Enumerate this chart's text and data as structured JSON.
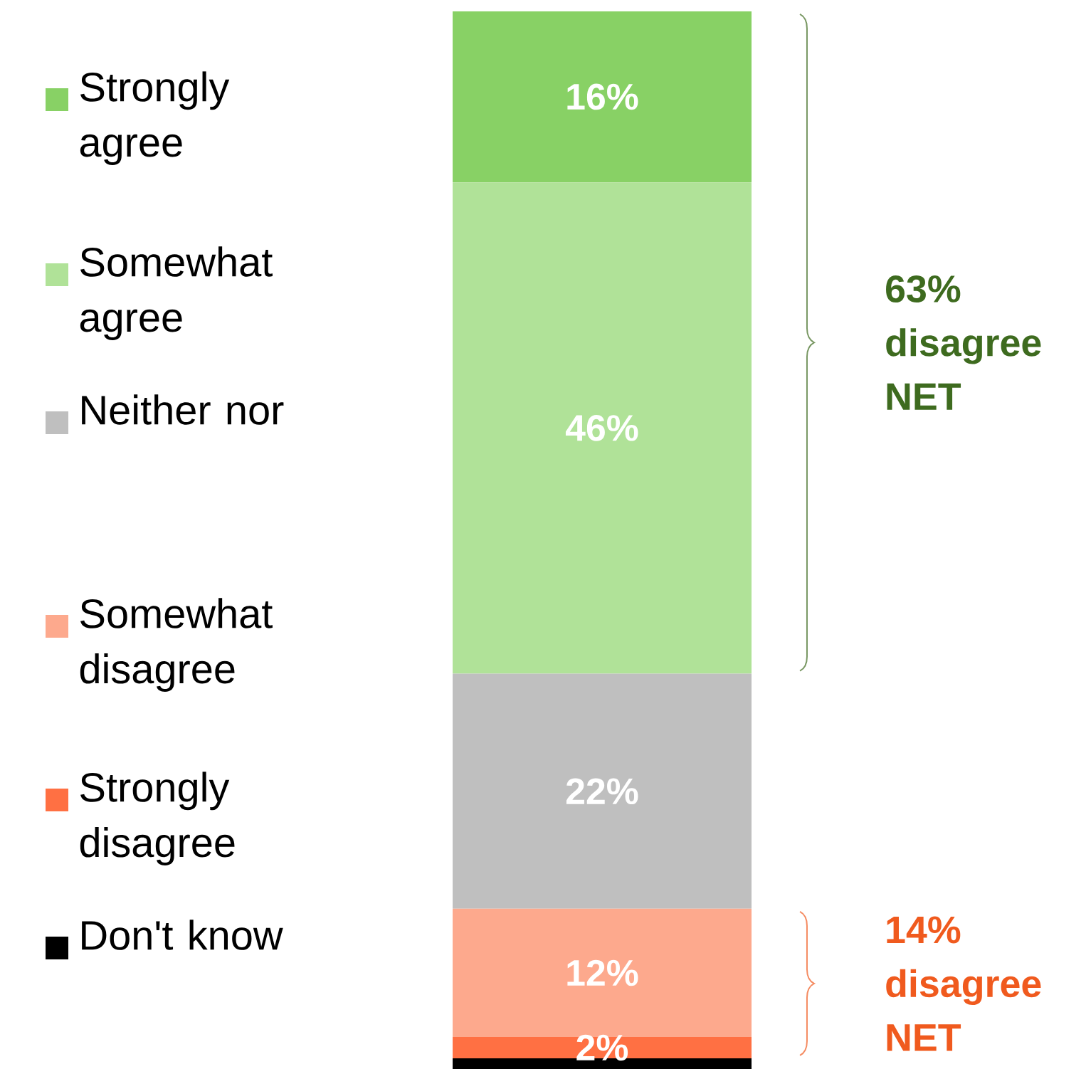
{
  "chart_data": {
    "type": "bar",
    "stacked": true,
    "categories": [
      null
    ],
    "legend": "left",
    "series": [
      {
        "name": "Don't know",
        "color": "#000000",
        "values": [
          1
        ],
        "value_labels": [
          null
        ]
      },
      {
        "name": "Strongly disagree",
        "color": "#ff7043",
        "values": [
          2
        ],
        "value_labels": [
          "2%"
        ]
      },
      {
        "name": "Somewhat disagree",
        "color": "#fda98d",
        "values": [
          12
        ],
        "value_labels": [
          "12%"
        ]
      },
      {
        "name": "Neither nor",
        "color": "#bfbfbf",
        "values": [
          22
        ],
        "value_labels": [
          "22%"
        ]
      },
      {
        "name": "Somewhat agree",
        "color": "#b0e298",
        "values": [
          46
        ],
        "value_labels": [
          "46%"
        ]
      },
      {
        "name": "Strongly agree",
        "color": "#88d165",
        "values": [
          16
        ],
        "value_labels": [
          "16%"
        ]
      }
    ],
    "annotations": [
      "63% disagree NET",
      "14% disagree NET"
    ]
  }
}
